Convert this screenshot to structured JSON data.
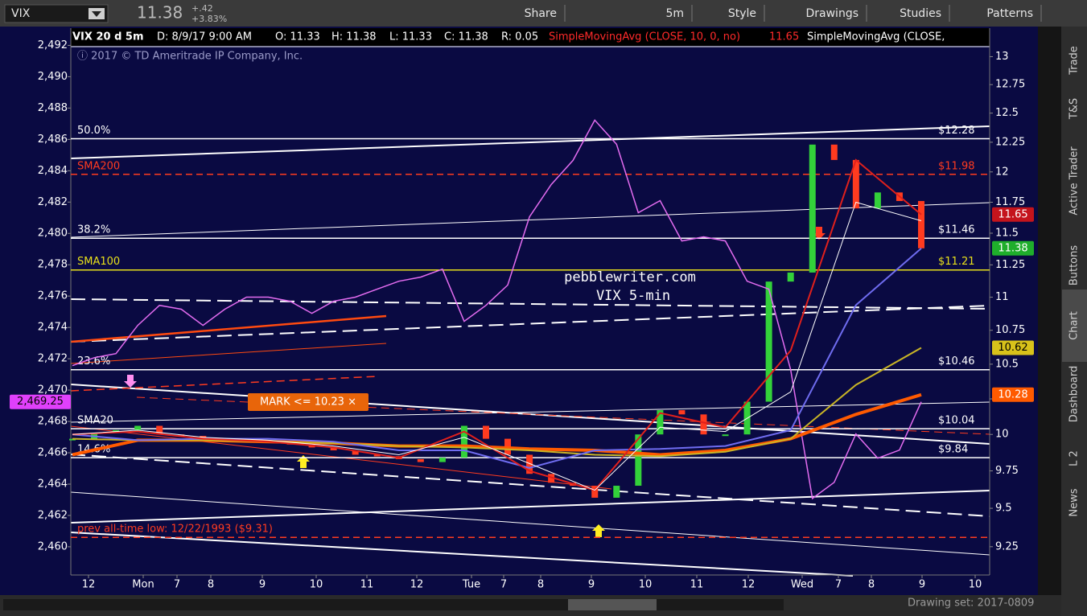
{
  "toolbar": {
    "symbol": "VIX",
    "last": "11.38",
    "change": "+.42",
    "change_pct": "+3.83%",
    "buttons": [
      "Share",
      "5m",
      "Style",
      "Drawings",
      "Studies",
      "Patterns"
    ]
  },
  "side_tabs": [
    "Trade",
    "T&S",
    "Active Trader",
    "Buttons",
    "Chart",
    "Dashboard",
    "L 2",
    "News"
  ],
  "bottom_bar": {
    "drawing_set": "Drawing set: 2017-0809"
  },
  "chart_data": {
    "type": "line",
    "header": [
      {
        "text": "VIX 20 d 5m",
        "color": "#ffffff"
      },
      {
        "text": "D: 8/9/17 9:00 AM",
        "color": "#ffffff"
      },
      {
        "text": "O: 11.33",
        "color": "#ffffff"
      },
      {
        "text": "H: 11.38",
        "color": "#ffffff"
      },
      {
        "text": "L: 11.33",
        "color": "#ffffff"
      },
      {
        "text": "C: 11.38",
        "color": "#ffffff"
      },
      {
        "text": "R: 0.05",
        "color": "#ffffff"
      },
      {
        "text": "SimpleMovingAvg (CLOSE, 10, 0, no)",
        "color": "#ff2a2a"
      },
      {
        "text": "11.65",
        "color": "#ff2a2a"
      },
      {
        "text": "SimpleMovingAvg (CLOSE,",
        "color": "#ffffff"
      }
    ],
    "copyright": "ⓘ 2017 © TD Ameritrade IP Company, Inc.",
    "watermark": [
      "pebblewriter.com",
      "VIX 5-min"
    ],
    "x_labels": [
      "12",
      "Mon",
      "7",
      "8",
      "9",
      "10",
      "11",
      "12",
      "Tue",
      "7",
      "8",
      "9",
      "10",
      "11",
      "12",
      "Wed",
      "7",
      "8",
      "9",
      "10"
    ],
    "ylim": [
      2458.2,
      2493.1
    ],
    "yticks": [
      {
        "value": 2460,
        "label": "2,460"
      },
      {
        "value": 2462,
        "label": "2,462"
      },
      {
        "value": 2464,
        "label": "2,464"
      },
      {
        "value": 2466,
        "label": "2,466"
      },
      {
        "value": 2468,
        "label": "2,468"
      },
      {
        "value": 2470,
        "label": "2,470"
      },
      {
        "value": 2472,
        "label": "2,472"
      },
      {
        "value": 2474,
        "label": "2,474"
      },
      {
        "value": 2476,
        "label": "2,476"
      },
      {
        "value": 2478,
        "label": "2,478"
      },
      {
        "value": 2480,
        "label": "2,480"
      },
      {
        "value": 2482,
        "label": "2,482"
      },
      {
        "value": 2484,
        "label": "2,484"
      },
      {
        "value": 2486,
        "label": "2,486"
      },
      {
        "value": 2488,
        "label": "2,488"
      },
      {
        "value": 2490,
        "label": "2,490"
      },
      {
        "value": 2492,
        "label": "2,492"
      }
    ],
    "y2lim": [
      9.07,
      13.26
    ],
    "y2log": true,
    "y2ticks": [
      9.25,
      9.5,
      9.75,
      10,
      10.25,
      10.5,
      10.75,
      11,
      11.25,
      11.5,
      11.75,
      12,
      12.25,
      12.5,
      12.75,
      13
    ],
    "series": [
      {
        "style": "candles",
        "axis": "y2",
        "up_color": "#33d13a",
        "down_color": "#ff3b1f",
        "values": [
          9.97,
          10.01,
          10.03,
          10.06,
          10.0,
          9.99,
          9.97,
          9.97,
          9.96,
          9.95,
          9.93,
          9.91,
          9.89,
          9.86,
          9.85,
          9.83,
          9.81,
          9.84,
          10.06,
          9.97,
          9.86,
          9.73,
          9.67,
          9.65,
          9.57,
          9.65,
          10.0,
          10.17,
          10.14,
          10.0,
          10.0,
          10.23,
          11.12,
          11.19,
          12.23,
          12.1,
          11.7,
          11.83,
          11.76,
          11.38
        ]
      },
      {
        "style": "line",
        "axis": "y",
        "color": "#e36cf0",
        "width": 1.5,
        "values": [
          2471.56,
          2472.07,
          2472.33,
          2474.13,
          2475.41,
          2475.16,
          2474.13,
          2475.16,
          2475.93,
          2475.93,
          2475.67,
          2474.9,
          2475.67,
          2475.93,
          2476.44,
          2476.95,
          2477.21,
          2477.72,
          2474.39,
          2475.41,
          2476.7,
          2481.06,
          2483.12,
          2484.66,
          2487.23,
          2485.69,
          2481.32,
          2482.09,
          2479.52,
          2479.78,
          2479.52,
          2476.95,
          2476.44,
          2471.3,
          2463.08,
          2464.11,
          2467.2,
          2465.65,
          2466.17,
          2469.25
        ]
      },
      {
        "style": "line",
        "axis": "y2",
        "color": "#ff5a00",
        "width": 4,
        "values": [
          9.86,
          9.96,
          9.96,
          9.95,
          9.94,
          9.92,
          9.92,
          9.9,
          9.89,
          9.86,
          9.89,
          9.97,
          10.14,
          10.28
        ]
      },
      {
        "style": "line",
        "axis": "y2",
        "color": "#c9b526",
        "width": 2,
        "values": [
          9.97,
          9.96,
          9.96,
          9.95,
          9.94,
          9.92,
          9.91,
          9.89,
          9.86,
          9.85,
          9.88,
          9.97,
          10.35,
          10.62
        ]
      },
      {
        "style": "line",
        "axis": "y2",
        "color": "#6f6cf0",
        "width": 2,
        "values": [
          10.0,
          9.96,
          9.97,
          9.97,
          9.95,
          9.89,
          9.89,
          9.77,
          9.89,
          9.9,
          9.92,
          10.03,
          10.94,
          11.38
        ]
      },
      {
        "style": "line",
        "axis": "y2",
        "color": "#e0201c",
        "width": 2,
        "values": [
          10.0,
          10.02,
          9.97,
          9.95,
          9.91,
          9.84,
          10.02,
          9.75,
          9.62,
          10.15,
          10.05,
          10.6,
          12.1,
          11.65
        ]
      },
      {
        "style": "line",
        "axis": "y2",
        "color": "#ffffff",
        "width": 1,
        "values": [
          10.0,
          10.03,
          9.98,
          9.96,
          9.92,
          9.86,
          9.98,
          9.8,
          9.62,
          10.05,
          10.02,
          10.3,
          11.75,
          11.6
        ]
      }
    ],
    "levels": [
      {
        "value": 12.28,
        "label": "$12.28",
        "tag": "50.0%",
        "color": "#ffffff",
        "dashed": false
      },
      {
        "value": 11.98,
        "label": "$11.98",
        "tag": "SMA200",
        "color": "#ff3b1f",
        "dashed": true
      },
      {
        "value": 11.46,
        "label": "$11.46",
        "tag": "38.2%",
        "color": "#ffffff",
        "dashed": false
      },
      {
        "value": 11.21,
        "label": "$11.21",
        "tag": "SMA100",
        "color": "#e8e01a",
        "dashed": false
      },
      {
        "value": 10.46,
        "label": "$10.46",
        "tag": "23.6%",
        "color": "#ffffff",
        "dashed": false
      },
      {
        "value": 10.04,
        "label": "$10.04",
        "tag": "SMA20",
        "color": "#ffffff",
        "dashed": false
      },
      {
        "value": 9.84,
        "label": "$9.84",
        "tag": "14.6%",
        "color": "#ffffff",
        "dashed": false
      },
      {
        "value": 9.31,
        "tag": "prev all-time low: 12/22/1993 ($9.31)",
        "color": "#ff3b1f",
        "dashed": true
      }
    ],
    "price_tags": [
      {
        "value": 11.65,
        "color": "#c4141c",
        "text_color": "#ffffff"
      },
      {
        "value": 11.38,
        "color": "#1fae2b",
        "text_color": "#ffffff"
      },
      {
        "value": 10.62,
        "color": "#d8c21a",
        "text_color": "#000000"
      },
      {
        "value": 10.28,
        "color": "#ff5a00",
        "text_color": "#ffffff"
      }
    ],
    "left_tag": {
      "value": 2469.25,
      "label": "2,469.25",
      "color": "#e040fb"
    },
    "mark_tag": "MARK <= 10.23 ×"
  }
}
